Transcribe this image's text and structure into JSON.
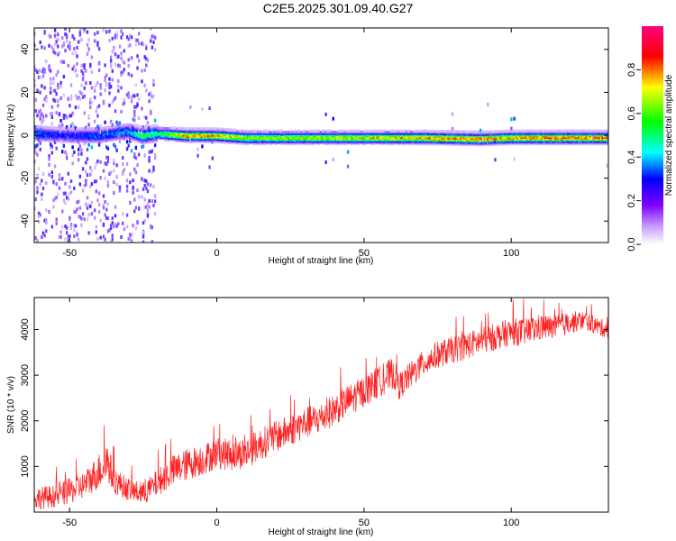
{
  "title": "C2E5.2025.301.09.40.G27",
  "chart_data": [
    {
      "type": "heatmap",
      "title": "C2E5.2025.301.09.40.G27",
      "xlabel": "Height of straight line (km)",
      "ylabel": "Frequency (Hz)",
      "xlim": [
        -62,
        133
      ],
      "ylim": [
        -50,
        50
      ],
      "x_ticks": [
        -50,
        0,
        50,
        100
      ],
      "y_ticks": [
        -40,
        -20,
        0,
        20,
        40
      ],
      "x_tick_labels": [
        "-50",
        "0",
        "50",
        "100"
      ],
      "y_tick_labels": [
        "-40",
        "-20",
        "0",
        "20",
        "40"
      ],
      "colorbar": {
        "label": "Normalized spectral amplitude",
        "range": [
          0,
          1
        ],
        "ticks": [
          0.0,
          0.2,
          0.4,
          0.6,
          0.8
        ],
        "tick_labels": [
          "0.0",
          "0.2",
          "0.4",
          "0.6",
          "0.8"
        ],
        "colormap": [
          "#ffffff",
          "#a060ff",
          "#0000ff",
          "#00ffff",
          "#00ff00",
          "#ffff00",
          "#ff0000",
          "#ff0080"
        ]
      },
      "ridge": {
        "description_points_x": [
          -62,
          -50,
          -40,
          -30,
          -25,
          -20,
          -10,
          0,
          10,
          30,
          50,
          70,
          90,
          100,
          110,
          133
        ],
        "center_freq_hz": [
          1,
          0,
          0,
          2,
          0,
          1,
          0,
          0,
          -1,
          -1,
          -1,
          -1,
          -1.5,
          -1,
          -1,
          -1
        ],
        "peak_amplitude": [
          0.35,
          0.3,
          0.35,
          0.4,
          0.6,
          0.55,
          0.85,
          0.8,
          0.7,
          0.7,
          0.75,
          0.8,
          0.85,
          0.8,
          0.85,
          0.85
        ]
      }
    },
    {
      "type": "line",
      "xlabel": "Height of straight line (km)",
      "ylabel": "SNR (10 * v/v)",
      "xlim": [
        -62,
        133
      ],
      "ylim": [
        0,
        4700
      ],
      "x_ticks": [
        -50,
        0,
        50,
        100
      ],
      "y_ticks": [
        1000,
        2000,
        3000,
        4000
      ],
      "x_tick_labels": [
        "-50",
        "0",
        "50",
        "100"
      ],
      "y_tick_labels": [
        "1000",
        "2000",
        "3000",
        "4000"
      ],
      "color": "#ff2020",
      "series": [
        {
          "x": [
            -62,
            -55,
            -50,
            -45,
            -40,
            -37,
            -35,
            -30,
            -25,
            -20,
            -15,
            -10,
            -5,
            0,
            5,
            10,
            15,
            20,
            25,
            30,
            35,
            40,
            45,
            50,
            55,
            60,
            62,
            65,
            70,
            75,
            80,
            85,
            90,
            95,
            100,
            105,
            110,
            115,
            120,
            125,
            130,
            133
          ],
          "values": [
            300,
            350,
            450,
            600,
            900,
            1100,
            700,
            500,
            400,
            650,
            900,
            1050,
            1150,
            1300,
            1250,
            1300,
            1500,
            1650,
            1800,
            1950,
            2050,
            2250,
            2450,
            2650,
            2850,
            3050,
            2750,
            2950,
            3250,
            3450,
            3550,
            3650,
            3750,
            3850,
            3950,
            3950,
            4050,
            4050,
            4150,
            4200,
            4050,
            4000
          ],
          "noise_amplitude": [
            250,
            250,
            280,
            300,
            400,
            450,
            300,
            250,
            250,
            300,
            350,
            350,
            350,
            350,
            350,
            350,
            350,
            350,
            350,
            350,
            350,
            350,
            350,
            350,
            350,
            350,
            300,
            300,
            300,
            300,
            300,
            300,
            300,
            300,
            300,
            300,
            300,
            250,
            250,
            200,
            200,
            200
          ]
        }
      ]
    }
  ]
}
